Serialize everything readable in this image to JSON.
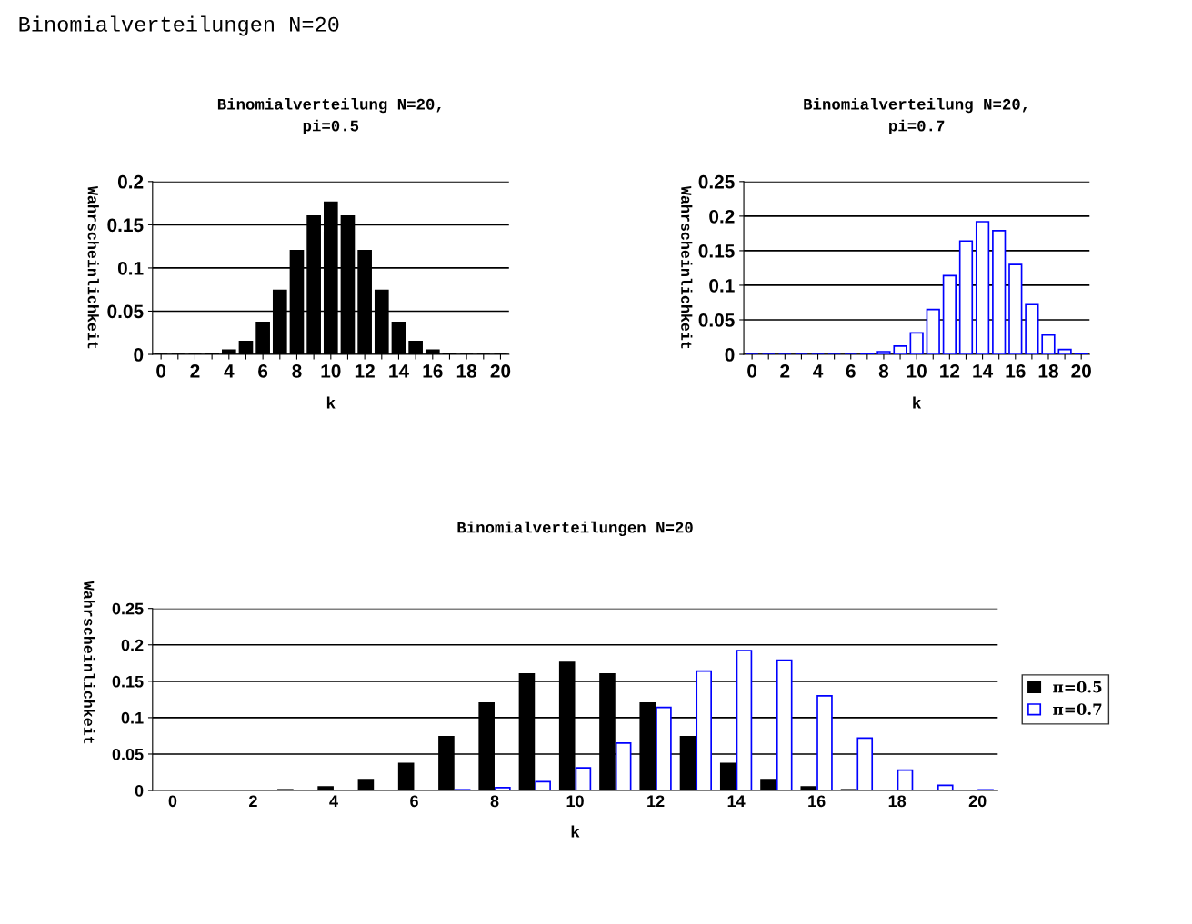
{
  "chart_data": [
    {
      "type": "bar",
      "title": "Binomialverteilung N=20,\npi=0.5",
      "xlabel": "k",
      "ylabel": "Wahrscheinlichkeit",
      "annotations": [
        "Binomialverteilungen N=20"
      ],
      "categories": [
        "0",
        null,
        "2",
        null,
        "4",
        null,
        "6",
        null,
        "8",
        null,
        "10",
        null,
        "12",
        null,
        "14",
        null,
        "16",
        null,
        "18",
        null,
        "20"
      ],
      "values": [
        0.0,
        0.0,
        0.0,
        0.001,
        0.005,
        0.015,
        0.037,
        0.074,
        0.12,
        0.16,
        0.176,
        0.16,
        0.12,
        0.074,
        0.037,
        0.015,
        0.005,
        0.001,
        0.0,
        0.0,
        0.0
      ],
      "color": "#000000",
      "ylim": [
        0,
        0.2
      ],
      "yticks": [
        0,
        0.05,
        0.1,
        0.15,
        0.2
      ],
      "grid": "y"
    },
    {
      "type": "bar",
      "title": "Binomialverteilung N=20,\npi=0.7",
      "xlabel": "k",
      "ylabel": "Wahrscheinlichkeit",
      "categories": [
        "0",
        null,
        "2",
        null,
        "4",
        null,
        "6",
        null,
        "8",
        null,
        "10",
        null,
        "12",
        null,
        "14",
        null,
        "16",
        null,
        "18",
        null,
        "20"
      ],
      "values": [
        0.0,
        0.0,
        0.0,
        0.0,
        0.0,
        0.0,
        0.0,
        0.001,
        0.004,
        0.012,
        0.031,
        0.065,
        0.114,
        0.164,
        0.192,
        0.179,
        0.13,
        0.072,
        0.028,
        0.007,
        0.001
      ],
      "color": "#0000ff",
      "ylim": [
        0,
        0.25
      ],
      "yticks": [
        0,
        0.05,
        0.1,
        0.15,
        0.2,
        0.25
      ],
      "grid": "y"
    },
    {
      "type": "bar",
      "title": "Binomialverteilungen N=20",
      "xlabel": "k",
      "ylabel": "Wahrscheinlichkeit",
      "categories": [
        "0",
        null,
        "2",
        null,
        "4",
        null,
        "6",
        null,
        "8",
        null,
        "10",
        null,
        "12",
        null,
        "14",
        null,
        "16",
        null,
        "18",
        null,
        "20"
      ],
      "series": [
        {
          "name": "π=0.5",
          "color": "#000000",
          "values": [
            0.0,
            0.0,
            0.0,
            0.001,
            0.005,
            0.015,
            0.037,
            0.074,
            0.12,
            0.16,
            0.176,
            0.16,
            0.12,
            0.074,
            0.037,
            0.015,
            0.005,
            0.001,
            0.0,
            0.0,
            0.0
          ]
        },
        {
          "name": "π=0.7",
          "color": "#0000ff",
          "values": [
            0.0,
            0.0,
            0.0,
            0.0,
            0.0,
            0.0,
            0.0,
            0.001,
            0.004,
            0.012,
            0.031,
            0.065,
            0.114,
            0.164,
            0.192,
            0.179,
            0.13,
            0.072,
            0.028,
            0.007,
            0.001
          ]
        }
      ],
      "ylim": [
        0,
        0.25
      ],
      "yticks": [
        0,
        0.05,
        0.1,
        0.15,
        0.2,
        0.25
      ],
      "grid": "y",
      "legend": "right"
    }
  ]
}
